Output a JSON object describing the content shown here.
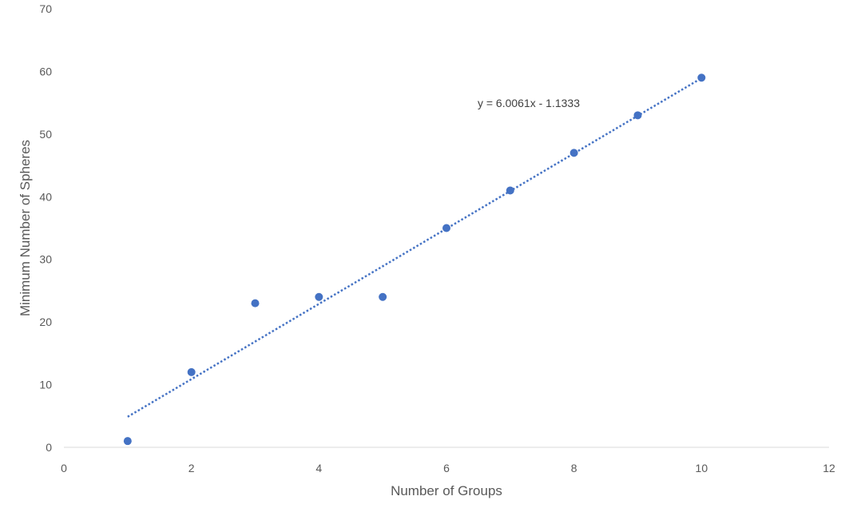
{
  "chart_data": {
    "type": "scatter",
    "title": "",
    "xlabel": "Number of Groups",
    "ylabel": "Minimum Number of Spheres",
    "xlim": [
      0,
      12
    ],
    "ylim": [
      0,
      70
    ],
    "x_ticks": [
      0,
      2,
      4,
      6,
      8,
      10,
      12
    ],
    "y_ticks": [
      0,
      10,
      20,
      30,
      40,
      50,
      60,
      70
    ],
    "grid": false,
    "legend": "none",
    "series": [
      {
        "x": [
          1,
          2,
          3,
          4,
          5,
          6,
          7,
          8,
          9,
          10
        ],
        "y": [
          1,
          12,
          23,
          24,
          24,
          35,
          41,
          47,
          53,
          59
        ],
        "color": "#4472C4"
      }
    ],
    "trendline": {
      "type": "linear",
      "slope": 6.0061,
      "intercept": -1.1333,
      "x_range": [
        1,
        10
      ],
      "style": "dotted",
      "color": "#4472C4",
      "equation_label": "y = 6.0061x - 1.1333"
    }
  }
}
